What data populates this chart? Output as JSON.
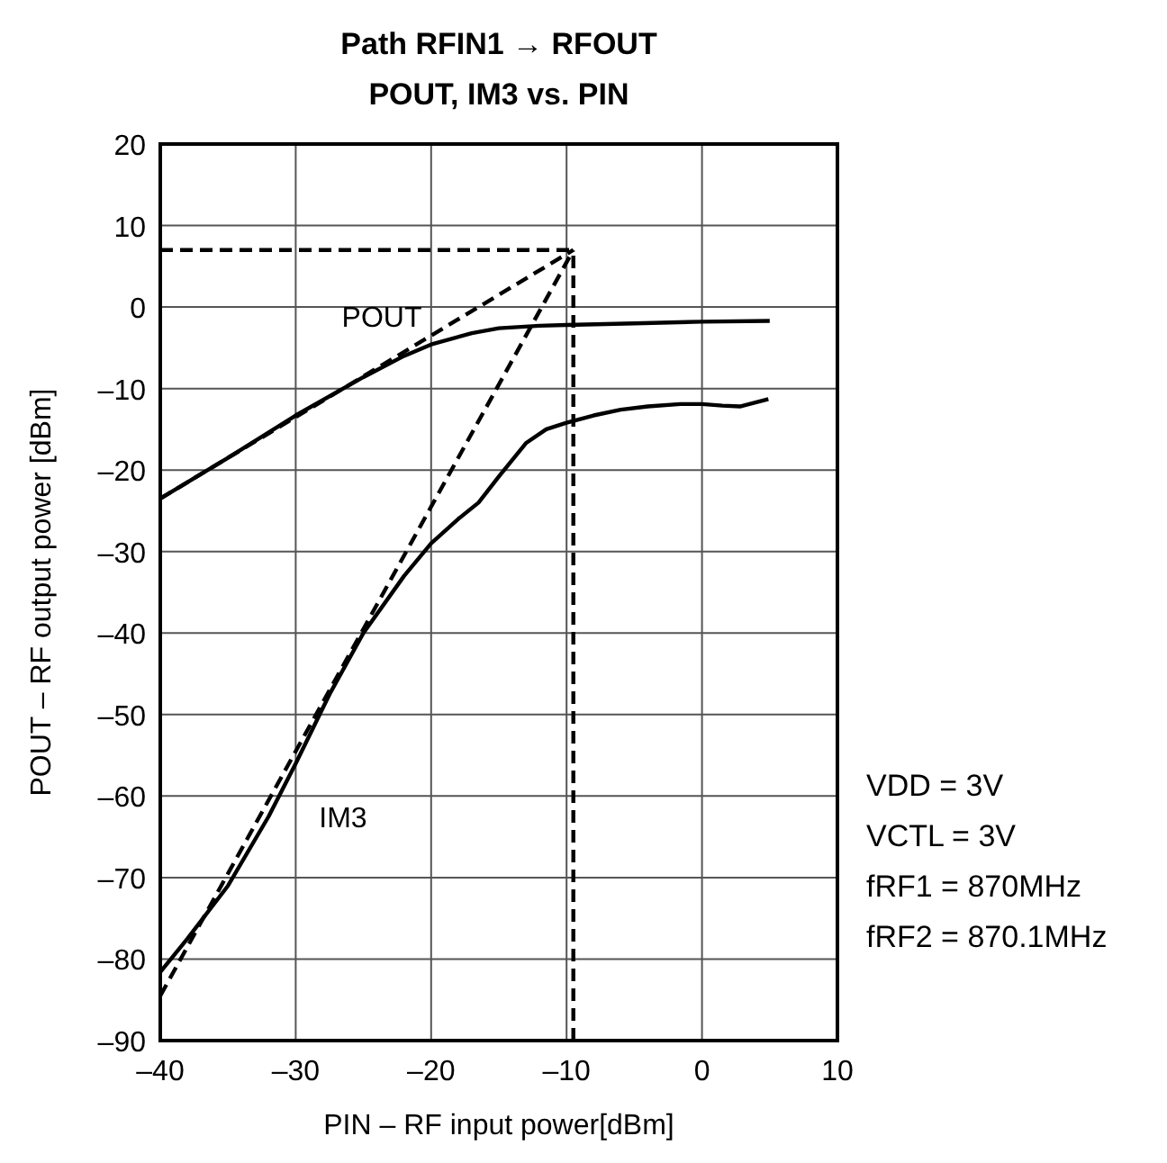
{
  "chart_data": {
    "type": "line",
    "title": "Path RFIN1 → RFOUT",
    "subtitle": "POUT, IM3 vs. PIN",
    "xlabel": "PIN – RF input power[dBm]",
    "ylabel": "POUT – RF output power [dBm]",
    "xlim": [
      -40,
      10
    ],
    "ylim": [
      -90,
      20
    ],
    "xticks": [
      {
        "value": -40,
        "label": "–40"
      },
      {
        "value": -30,
        "label": "–30"
      },
      {
        "value": -20,
        "label": "–20"
      },
      {
        "value": -10,
        "label": "–10"
      },
      0,
      10
    ],
    "yticks": [
      {
        "value": -90,
        "label": "–90"
      },
      {
        "value": -80,
        "label": "–80"
      },
      {
        "value": -70,
        "label": "–70"
      },
      {
        "value": -60,
        "label": "–60"
      },
      {
        "value": -50,
        "label": "–50"
      },
      {
        "value": -40,
        "label": "–40"
      },
      {
        "value": -30,
        "label": "–30"
      },
      {
        "value": -20,
        "label": "–20"
      },
      {
        "value": -10,
        "label": "–10"
      },
      0,
      10,
      20
    ],
    "grid": true,
    "marker": "none",
    "series": [
      {
        "name": "POUT",
        "color": "#000000",
        "line_style": "solid",
        "x": [
          -40,
          -35,
          -30,
          -25,
          -22,
          -20,
          -17,
          -15,
          -12,
          -10,
          -5,
          0,
          5
        ],
        "values": [
          -23.5,
          -18.5,
          -13.3,
          -8.6,
          -6,
          -4.6,
          -3.2,
          -2.6,
          -2.3,
          -2.2,
          -2,
          -1.8,
          -1.7
        ]
      },
      {
        "name": "IM3",
        "color": "#000000",
        "line_style": "solid",
        "x": [
          -40,
          -38,
          -35,
          -32,
          -30,
          -27.5,
          -25,
          -22,
          -20,
          -18,
          -16.5,
          -15,
          -13,
          -11.5,
          -10,
          -8,
          -6,
          -4,
          -1.6,
          0,
          1.5,
          2.8,
          4.9
        ],
        "values": [
          -81.6,
          -77.5,
          -71,
          -62.5,
          -56,
          -47.5,
          -40,
          -33,
          -29,
          -26,
          -24,
          -20.8,
          -16.7,
          -15,
          -14.2,
          -13.3,
          -12.6,
          -12.2,
          -11.9,
          -11.9,
          -12.1,
          -12.2,
          -11.3
        ]
      },
      {
        "color": "#000000",
        "line_style": "dashed",
        "x": [
          -40,
          -9.5
        ],
        "values": [
          -23.5,
          7
        ]
      },
      {
        "color": "#000000",
        "line_style": "dashed",
        "x": [
          -40,
          -9.5
        ],
        "values": [
          -84.5,
          7
        ]
      },
      {
        "color": "#000000",
        "line_style": "dashed",
        "x": [
          -40,
          -9.5
        ],
        "values": [
          7,
          7
        ]
      },
      {
        "color": "#000000",
        "line_style": "dashed",
        "x": [
          -9.5,
          -9.5
        ],
        "values": [
          -90,
          7
        ]
      }
    ],
    "annotations": [
      "VDD = 3V",
      "VCTL = 3V",
      "fRF1 = 870MHz",
      "fRF2 = 870.1MHz"
    ]
  }
}
